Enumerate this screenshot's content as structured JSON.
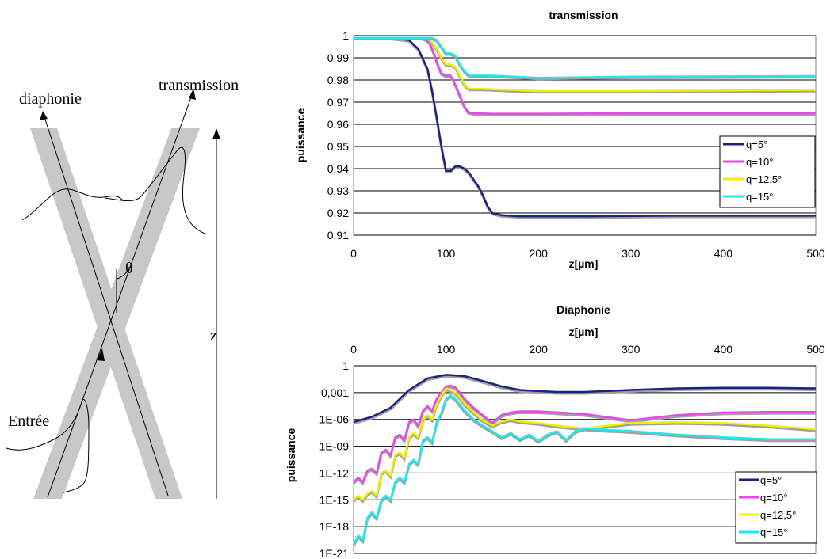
{
  "diagram": {
    "labels": {
      "diaphonie": "diaphonie",
      "transmission": "transmission",
      "theta": "θ",
      "z": "z",
      "entree": "Entrée"
    }
  },
  "chart_data": [
    {
      "type": "line",
      "title": "transmission",
      "xlabel": "z[µm]",
      "ylabel": "puissance",
      "xlim": [
        0,
        500
      ],
      "ylim": [
        0.91,
        1
      ],
      "x_ticks": [
        "0",
        "100",
        "200",
        "300",
        "400",
        "500"
      ],
      "y_ticks": [
        "1",
        "0,99",
        "0,98",
        "0,97",
        "0,96",
        "0,95",
        "0,94",
        "0,93",
        "0,92",
        "0,91"
      ],
      "grid": "horizontal",
      "legend_position": "right",
      "series": [
        {
          "name": "q=5°",
          "color": "#1a237e",
          "x": [
            0,
            40,
            60,
            70,
            80,
            85,
            90,
            95,
            100,
            105,
            110,
            115,
            120,
            125,
            130,
            135,
            140,
            145,
            150,
            160,
            180,
            250,
            350,
            500
          ],
          "y": [
            0.999,
            0.999,
            0.998,
            0.994,
            0.985,
            0.975,
            0.963,
            0.95,
            0.939,
            0.939,
            0.941,
            0.941,
            0.94,
            0.938,
            0.935,
            0.932,
            0.928,
            0.923,
            0.92,
            0.919,
            0.9185,
            0.9185,
            0.9188,
            0.9188
          ]
        },
        {
          "name": "q=10°",
          "color": "#e64ae6",
          "x": [
            0,
            75,
            82,
            87,
            92,
            95,
            100,
            105,
            108,
            112,
            116,
            120,
            124,
            130,
            150,
            200,
            300,
            500
          ],
          "y": [
            0.999,
            0.999,
            0.997,
            0.992,
            0.986,
            0.983,
            0.982,
            0.982,
            0.98,
            0.976,
            0.972,
            0.968,
            0.9655,
            0.965,
            0.9648,
            0.9648,
            0.965,
            0.965
          ]
        },
        {
          "name": "q=12,5°",
          "color": "#f0f000",
          "x": [
            0,
            80,
            85,
            90,
            95,
            100,
            105,
            110,
            115,
            120,
            125,
            140,
            200,
            300,
            500
          ],
          "y": [
            0.999,
            0.999,
            0.997,
            0.994,
            0.99,
            0.987,
            0.987,
            0.986,
            0.982,
            0.978,
            0.976,
            0.976,
            0.975,
            0.975,
            0.9755
          ]
        },
        {
          "name": "q=15°",
          "color": "#1ee8f0",
          "x": [
            0,
            85,
            90,
            95,
            100,
            105,
            110,
            115,
            120,
            125,
            150,
            200,
            300,
            500
          ],
          "y": [
            0.999,
            0.999,
            0.998,
            0.995,
            0.992,
            0.992,
            0.991,
            0.987,
            0.984,
            0.982,
            0.982,
            0.981,
            0.9815,
            0.9818
          ]
        }
      ]
    },
    {
      "type": "line",
      "title": "Diaphonie",
      "xlabel": "z[µm]",
      "ylabel": "puissance",
      "xlim": [
        0,
        500
      ],
      "ylim": [
        1e-21,
        1
      ],
      "yscale": "log",
      "x_axis_position": "top",
      "x_ticks": [
        "0",
        "100",
        "200",
        "300",
        "400",
        "500"
      ],
      "y_ticks": [
        "1",
        "0,001",
        "1E-06",
        "1E-09",
        "1E-12",
        "1E-15",
        "1E-18",
        "1E-21"
      ],
      "grid": "horizontal",
      "legend_position": "bottom-right",
      "series": [
        {
          "name": "q=5°",
          "color": "#1a237e",
          "x": [
            0,
            20,
            40,
            60,
            80,
            100,
            120,
            140,
            160,
            180,
            200,
            220,
            250,
            300,
            350,
            400,
            450,
            500
          ],
          "y": [
            5e-07,
            2e-06,
            2e-05,
            0.002,
            0.04,
            0.1,
            0.07,
            0.02,
            0.005,
            0.002,
            0.0015,
            0.0012,
            0.0012,
            0.002,
            0.003,
            0.0035,
            0.0035,
            0.003
          ]
        },
        {
          "name": "q=10°",
          "color": "#e64ae6",
          "x": [
            0,
            5,
            10,
            15,
            20,
            25,
            30,
            35,
            40,
            45,
            50,
            55,
            60,
            65,
            70,
            75,
            80,
            85,
            90,
            95,
            100,
            105,
            110,
            115,
            120,
            130,
            140,
            150,
            160,
            170,
            180,
            200,
            250,
            300,
            350,
            400,
            450,
            500
          ],
          "y": [
            1e-13,
            3e-13,
            1e-13,
            2e-12,
            3e-12,
            1e-12,
            2e-10,
            4e-10,
            1e-10,
            1e-08,
            2e-08,
            5e-09,
            5e-07,
            1e-06,
            2e-07,
            1e-05,
            3e-05,
            1e-05,
            0.0002,
            0.001,
            0.005,
            0.006,
            0.004,
            0.001,
            0.0002,
            2e-05,
            3e-06,
            4e-07,
            3e-06,
            6e-06,
            8e-06,
            8e-06,
            4e-06,
            8e-07,
            3e-06,
            6e-06,
            7e-06,
            7e-06
          ]
        },
        {
          "name": "q=12,5°",
          "color": "#f0f000",
          "x": [
            0,
            5,
            10,
            15,
            20,
            25,
            30,
            35,
            40,
            45,
            50,
            55,
            60,
            65,
            70,
            75,
            80,
            85,
            90,
            95,
            100,
            105,
            110,
            115,
            120,
            130,
            140,
            150,
            160,
            170,
            180,
            200,
            220,
            250,
            300,
            350,
            400,
            450,
            500
          ],
          "y": [
            1e-15,
            3e-15,
            1e-15,
            5e-15,
            1e-14,
            3e-15,
            1e-12,
            2e-12,
            5e-13,
            1e-10,
            2e-10,
            5e-11,
            1e-08,
            3e-08,
            1e-08,
            1e-06,
            3e-06,
            1e-06,
            5e-05,
            0.0005,
            0.003,
            0.002,
            0.001,
            0.0003,
            6e-05,
            6e-06,
            8e-07,
            2e-07,
            6e-07,
            1e-06,
            6e-07,
            4e-07,
            2e-07,
            1e-07,
            4e-07,
            5e-07,
            4e-07,
            2e-07,
            8e-08
          ]
        },
        {
          "name": "q=15°",
          "color": "#1ee8f0",
          "x": [
            0,
            5,
            10,
            15,
            20,
            25,
            30,
            35,
            40,
            45,
            50,
            55,
            60,
            65,
            70,
            75,
            80,
            85,
            90,
            95,
            100,
            105,
            110,
            120,
            130,
            140,
            150,
            160,
            170,
            180,
            190,
            200,
            210,
            220,
            230,
            240,
            250,
            260,
            300,
            350,
            400,
            450,
            500
          ],
          "y": [
            1e-20,
            1e-19,
            3e-20,
            1e-17,
            4e-17,
            1e-17,
            1e-15,
            3e-15,
            1e-15,
            1e-13,
            3e-13,
            1e-13,
            1e-11,
            3e-11,
            1e-11,
            5e-09,
            1e-08,
            3e-09,
            5e-07,
            5e-06,
            0.0002,
            0.0005,
            0.0002,
            1e-05,
            1e-06,
            2e-07,
            5e-08,
            1e-08,
            3e-08,
            6e-09,
            2e-08,
            4e-09,
            2e-08,
            5e-08,
            5e-09,
            5e-08,
            1e-07,
            8e-08,
            5e-08,
            2e-08,
            1e-08,
            6e-09,
            6e-09
          ]
        }
      ]
    }
  ]
}
